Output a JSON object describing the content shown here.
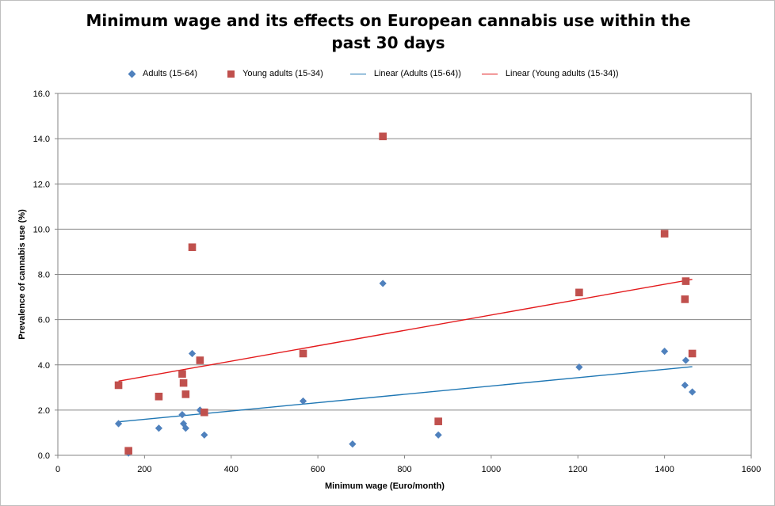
{
  "chart_data": {
    "type": "scatter",
    "title": "Minimum wage and its effects on European cannabis use within the past 30 days",
    "xlabel": "Minimum wage (Euro/month)",
    "ylabel": "Prevalence of cannabis  use (%)",
    "xlim": [
      0,
      1600
    ],
    "ylim": [
      0,
      16
    ],
    "x_ticks": [
      "0",
      "200",
      "400",
      "600",
      "800",
      "1000",
      "1200",
      "1400",
      "1600"
    ],
    "y_ticks": [
      "0.0",
      "2.0",
      "4.0",
      "6.0",
      "8.0",
      "10.0",
      "12.0",
      "14.0",
      "16.0"
    ],
    "grid": "horizontal",
    "legend_position": "top",
    "series": [
      {
        "name": "Adults (15-64)",
        "marker": "diamond",
        "color": "#4f81bd",
        "points": [
          [
            140,
            1.4
          ],
          [
            163,
            0.1
          ],
          [
            233,
            1.2
          ],
          [
            287,
            1.8
          ],
          [
            290,
            1.4
          ],
          [
            295,
            1.2
          ],
          [
            310,
            4.5
          ],
          [
            328,
            2.0
          ],
          [
            338,
            0.9
          ],
          [
            566,
            2.4
          ],
          [
            680,
            0.5
          ],
          [
            750,
            7.6
          ],
          [
            878,
            0.9
          ],
          [
            1203,
            3.9
          ],
          [
            1400,
            4.6
          ],
          [
            1447,
            3.1
          ],
          [
            1449,
            4.2
          ],
          [
            1464,
            2.8
          ]
        ]
      },
      {
        "name": "Young adults (15-34)",
        "marker": "square",
        "color": "#c0504d",
        "points": [
          [
            140,
            3.1
          ],
          [
            163,
            0.2
          ],
          [
            233,
            2.6
          ],
          [
            287,
            3.6
          ],
          [
            290,
            3.2
          ],
          [
            295,
            2.7
          ],
          [
            310,
            9.2
          ],
          [
            328,
            4.2
          ],
          [
            338,
            1.9
          ],
          [
            566,
            4.5
          ],
          [
            750,
            14.1
          ],
          [
            878,
            1.5
          ],
          [
            1203,
            7.2
          ],
          [
            1400,
            9.8
          ],
          [
            1447,
            6.9
          ],
          [
            1449,
            7.7
          ],
          [
            1464,
            4.5
          ]
        ]
      }
    ],
    "trendlines": [
      {
        "name": "Linear (Adults (15-64))",
        "color": "#1f77b4",
        "x": [
          140,
          1464
        ],
        "y": [
          1.48,
          3.92
        ]
      },
      {
        "name": "Linear (Young adults (15-34))",
        "color": "#e31a1c",
        "x": [
          140,
          1464
        ],
        "y": [
          3.28,
          7.78
        ]
      }
    ]
  }
}
